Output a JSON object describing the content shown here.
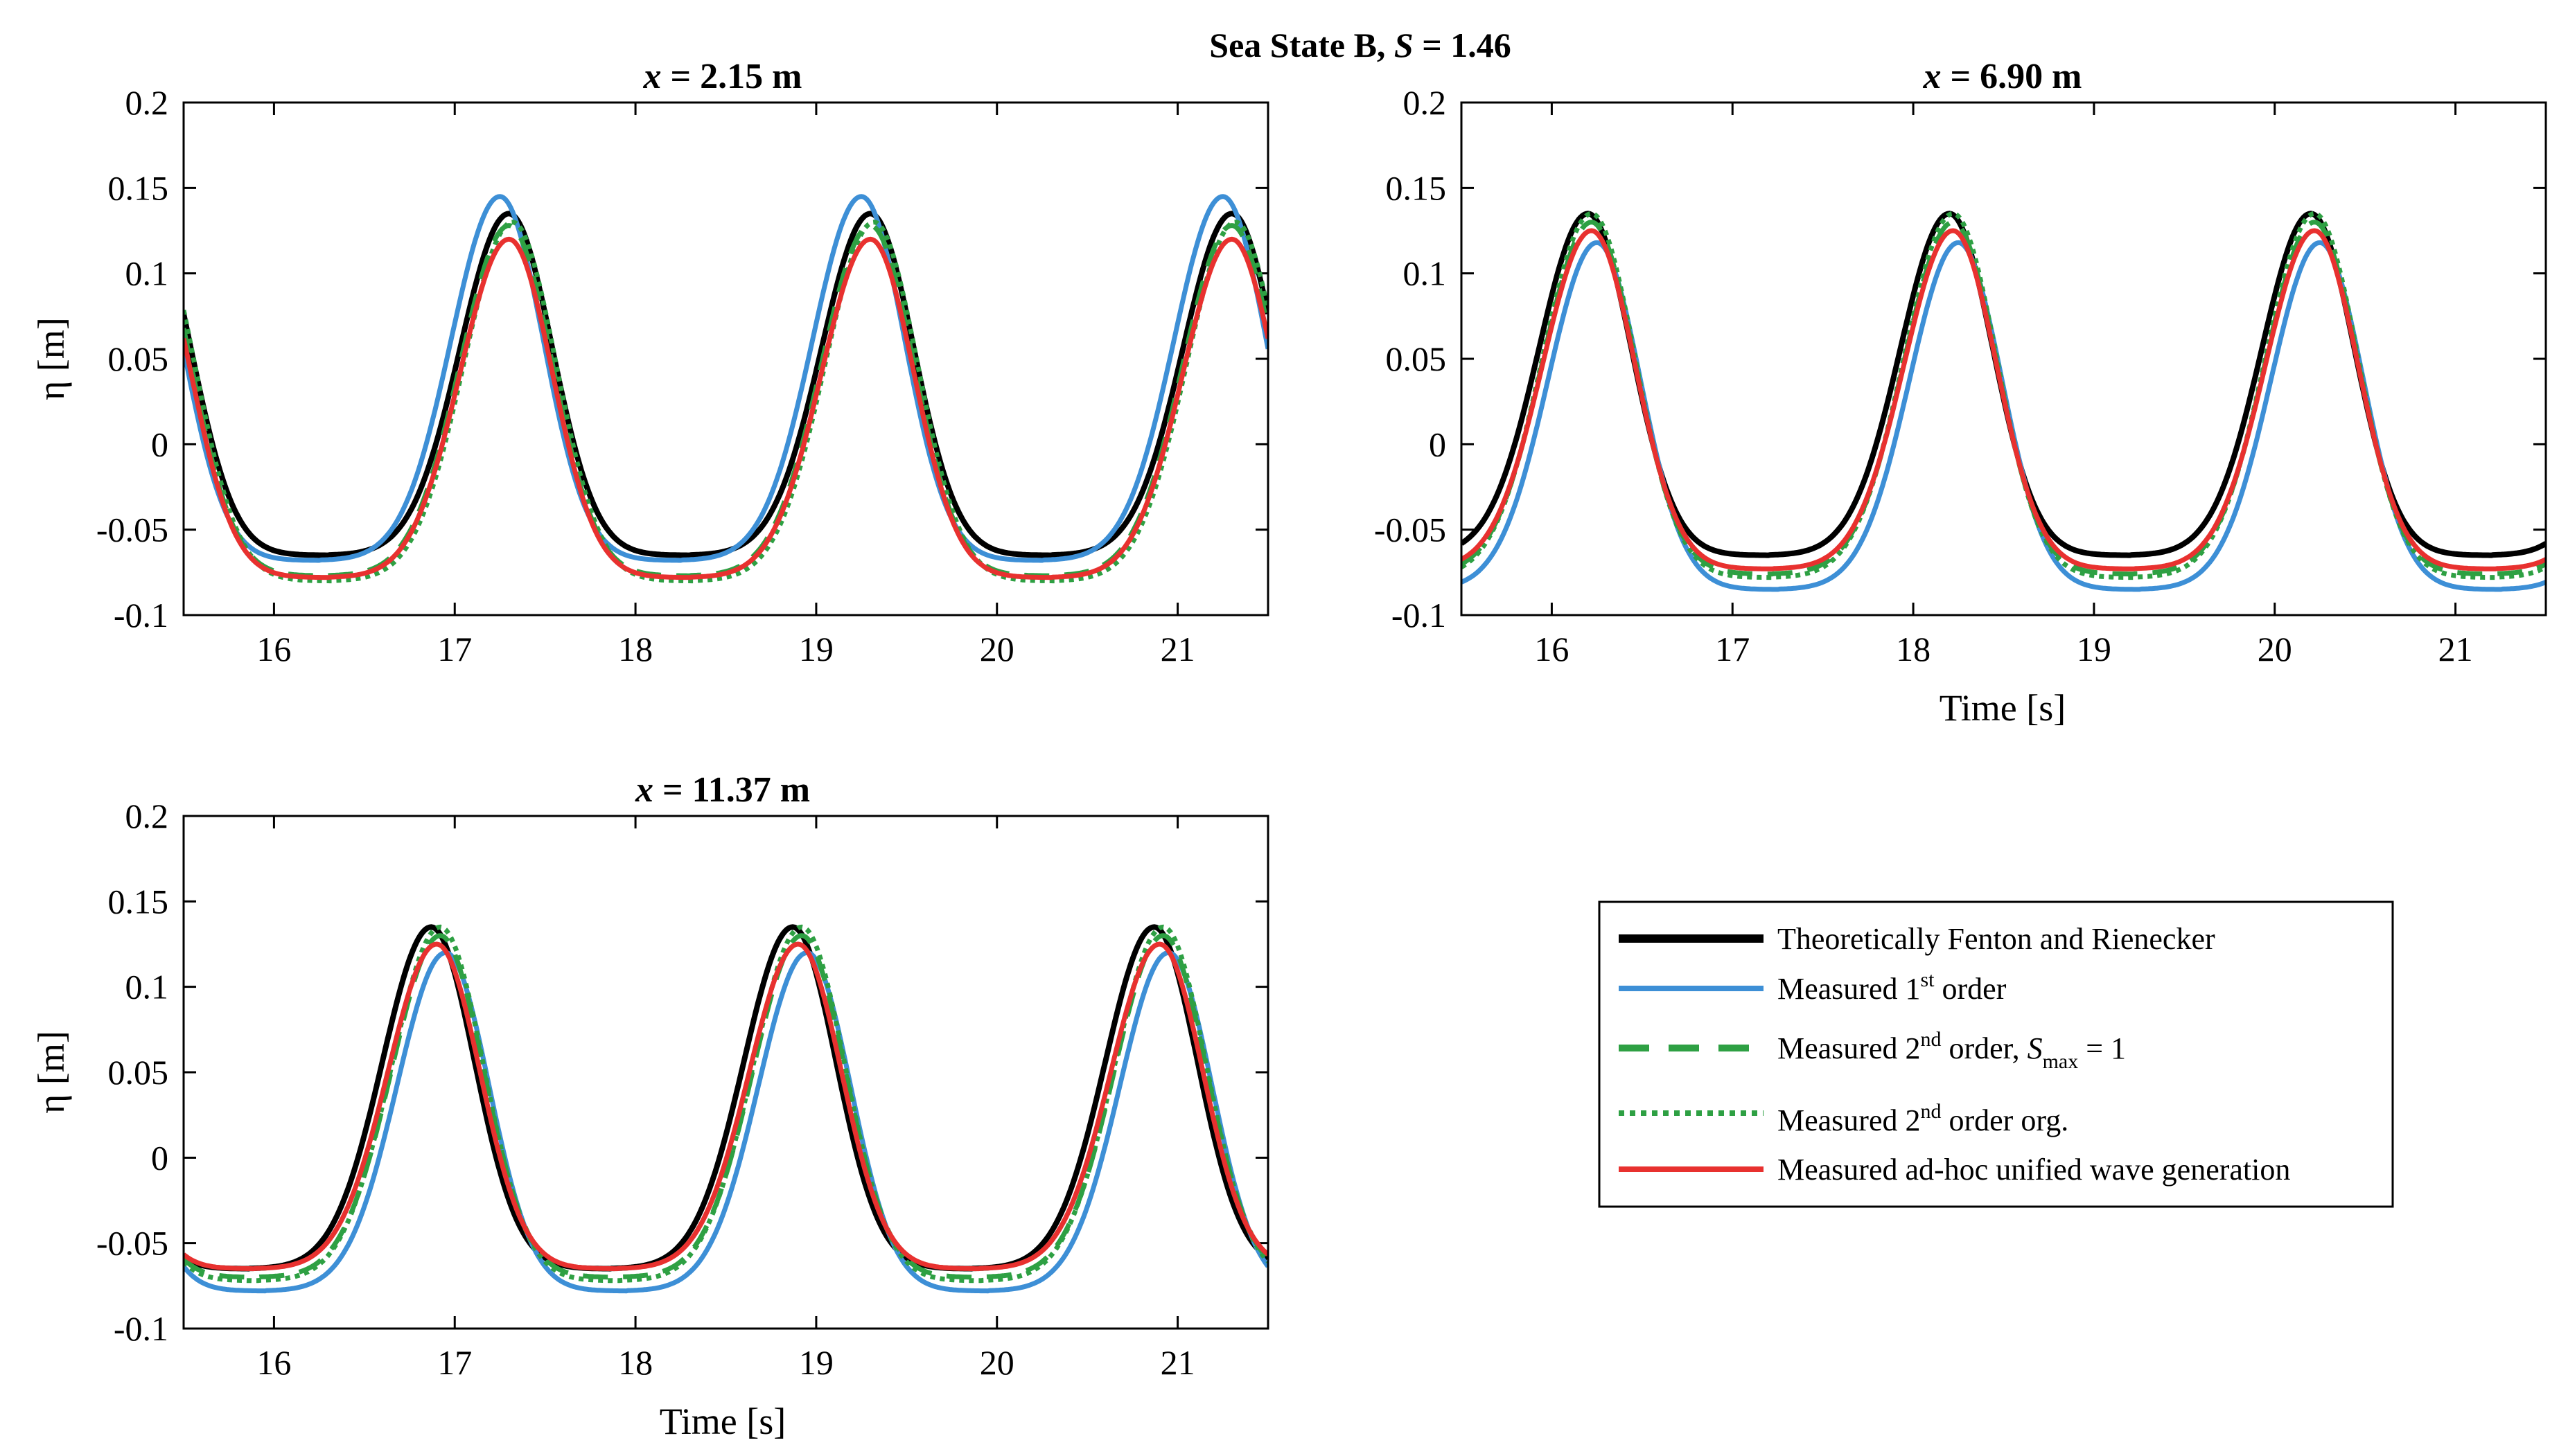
{
  "figure_title": {
    "main": "Sea State B, ",
    "s_symbol": "S",
    "rest": " = 1.46"
  },
  "chart_data": [
    {
      "type": "line",
      "title_var": "x",
      "title_rest": " = 2.15 m",
      "xlabel": "",
      "ylabel": "η [m]",
      "xlim": [
        15.5,
        21.5
      ],
      "ylim": [
        -0.1,
        0.2
      ],
      "xticks": [
        16,
        17,
        18,
        19,
        20,
        21
      ],
      "yticks": [
        -0.1,
        -0.05,
        0,
        0.05,
        0.1,
        0.15,
        0.2
      ],
      "ytick_labels": [
        "-0.1",
        "-0.05",
        "0",
        "0.05",
        "0.1",
        "0.15",
        "0.2"
      ],
      "xtick_labels": [
        "16",
        "17",
        "18",
        "19",
        "20",
        "21"
      ],
      "period": 2.0,
      "crest_times": [
        17.3,
        19.3,
        21.3
      ],
      "series": [
        {
          "key": "theory",
          "name": "Theoretically Fenton and Rienecker",
          "crest": 0.135,
          "trough": -0.065,
          "shift": 0.0
        },
        {
          "key": "first",
          "name": "Measured 1st order",
          "crest": 0.145,
          "trough": -0.068,
          "shift": -0.05
        },
        {
          "key": "second",
          "name": "Measured 2nd order, Smax = 1",
          "crest": 0.128,
          "trough": -0.077,
          "shift": 0.0
        },
        {
          "key": "second_org",
          "name": "Measured 2nd order org.",
          "crest": 0.13,
          "trough": -0.08,
          "shift": 0.02
        },
        {
          "key": "unified",
          "name": "Measured ad-hoc unified wave generation",
          "crest": 0.12,
          "trough": -0.078,
          "shift": 0.0
        }
      ]
    },
    {
      "type": "line",
      "title_var": "x",
      "title_rest": " = 6.90 m",
      "xlabel": "Time [s]",
      "ylabel": "",
      "xlim": [
        15.5,
        21.5
      ],
      "ylim": [
        -0.1,
        0.2
      ],
      "xticks": [
        16,
        17,
        18,
        19,
        20,
        21
      ],
      "yticks": [
        -0.1,
        -0.05,
        0,
        0.05,
        0.1,
        0.15,
        0.2
      ],
      "ytick_labels": [
        "-0.1",
        "-0.05",
        "0",
        "0.05",
        "0.1",
        "0.15",
        "0.2"
      ],
      "xtick_labels": [
        "16",
        "17",
        "18",
        "19",
        "20",
        "21"
      ],
      "period": 2.0,
      "crest_times": [
        16.2,
        18.2,
        20.2
      ],
      "series": [
        {
          "key": "theory",
          "name": "Theoretically Fenton and Rienecker",
          "crest": 0.135,
          "trough": -0.065,
          "shift": 0.0
        },
        {
          "key": "first",
          "name": "Measured 1st order",
          "crest": 0.118,
          "trough": -0.085,
          "shift": 0.05
        },
        {
          "key": "second",
          "name": "Measured 2nd order, Smax = 1",
          "crest": 0.13,
          "trough": -0.076,
          "shift": 0.02
        },
        {
          "key": "second_org",
          "name": "Measured 2nd order org.",
          "crest": 0.135,
          "trough": -0.078,
          "shift": 0.02
        },
        {
          "key": "unified",
          "name": "Measured ad-hoc unified wave generation",
          "crest": 0.125,
          "trough": -0.073,
          "shift": 0.02
        }
      ]
    },
    {
      "type": "line",
      "title_var": "x",
      "title_rest": " = 11.37 m",
      "xlabel": "Time [s]",
      "ylabel": "η [m]",
      "xlim": [
        15.5,
        21.5
      ],
      "ylim": [
        -0.1,
        0.2
      ],
      "xticks": [
        16,
        17,
        18,
        19,
        20,
        21
      ],
      "yticks": [
        -0.1,
        -0.05,
        0,
        0.05,
        0.1,
        0.15,
        0.2
      ],
      "ytick_labels": [
        "-0.1",
        "-0.05",
        "0",
        "0.05",
        "0.1",
        "0.15",
        "0.2"
      ],
      "xtick_labels": [
        "16",
        "17",
        "18",
        "19",
        "20",
        "21"
      ],
      "period": 2.0,
      "crest_times": [
        16.9,
        18.9,
        20.9
      ],
      "series": [
        {
          "key": "theory",
          "name": "Theoretically Fenton and Rienecker",
          "crest": 0.135,
          "trough": -0.065,
          "shift": -0.03
        },
        {
          "key": "first",
          "name": "Measured 1st order",
          "crest": 0.12,
          "trough": -0.078,
          "shift": 0.05
        },
        {
          "key": "second",
          "name": "Measured 2nd order, Smax = 1",
          "crest": 0.13,
          "trough": -0.07,
          "shift": 0.02
        },
        {
          "key": "second_org",
          "name": "Measured 2nd order org.",
          "crest": 0.135,
          "trough": -0.072,
          "shift": 0.02
        },
        {
          "key": "unified",
          "name": "Measured ad-hoc unified wave generation",
          "crest": 0.125,
          "trough": -0.065,
          "shift": 0.0
        }
      ]
    }
  ],
  "legend": {
    "items": [
      {
        "key": "theory",
        "label": "Theoretically Fenton and Rienecker"
      },
      {
        "key": "first",
        "label_pre": "Measured 1",
        "label_sup": "st",
        "label_post": " order"
      },
      {
        "key": "second",
        "label_pre": "Measured 2",
        "label_sup": "nd",
        "label_mid": " order, ",
        "label_s": "S",
        "label_sub": "max",
        "label_post": " = 1"
      },
      {
        "key": "second_org",
        "label_pre": "Measured 2",
        "label_sup": "nd",
        "label_post": " order org."
      },
      {
        "key": "unified",
        "label": "Measured ad-hoc unified wave generation"
      }
    ]
  },
  "colors": {
    "theory": "#000000",
    "first": "#3d8fd6",
    "second": "#2ea043",
    "second_org": "#2ea043",
    "unified": "#e8312f"
  }
}
